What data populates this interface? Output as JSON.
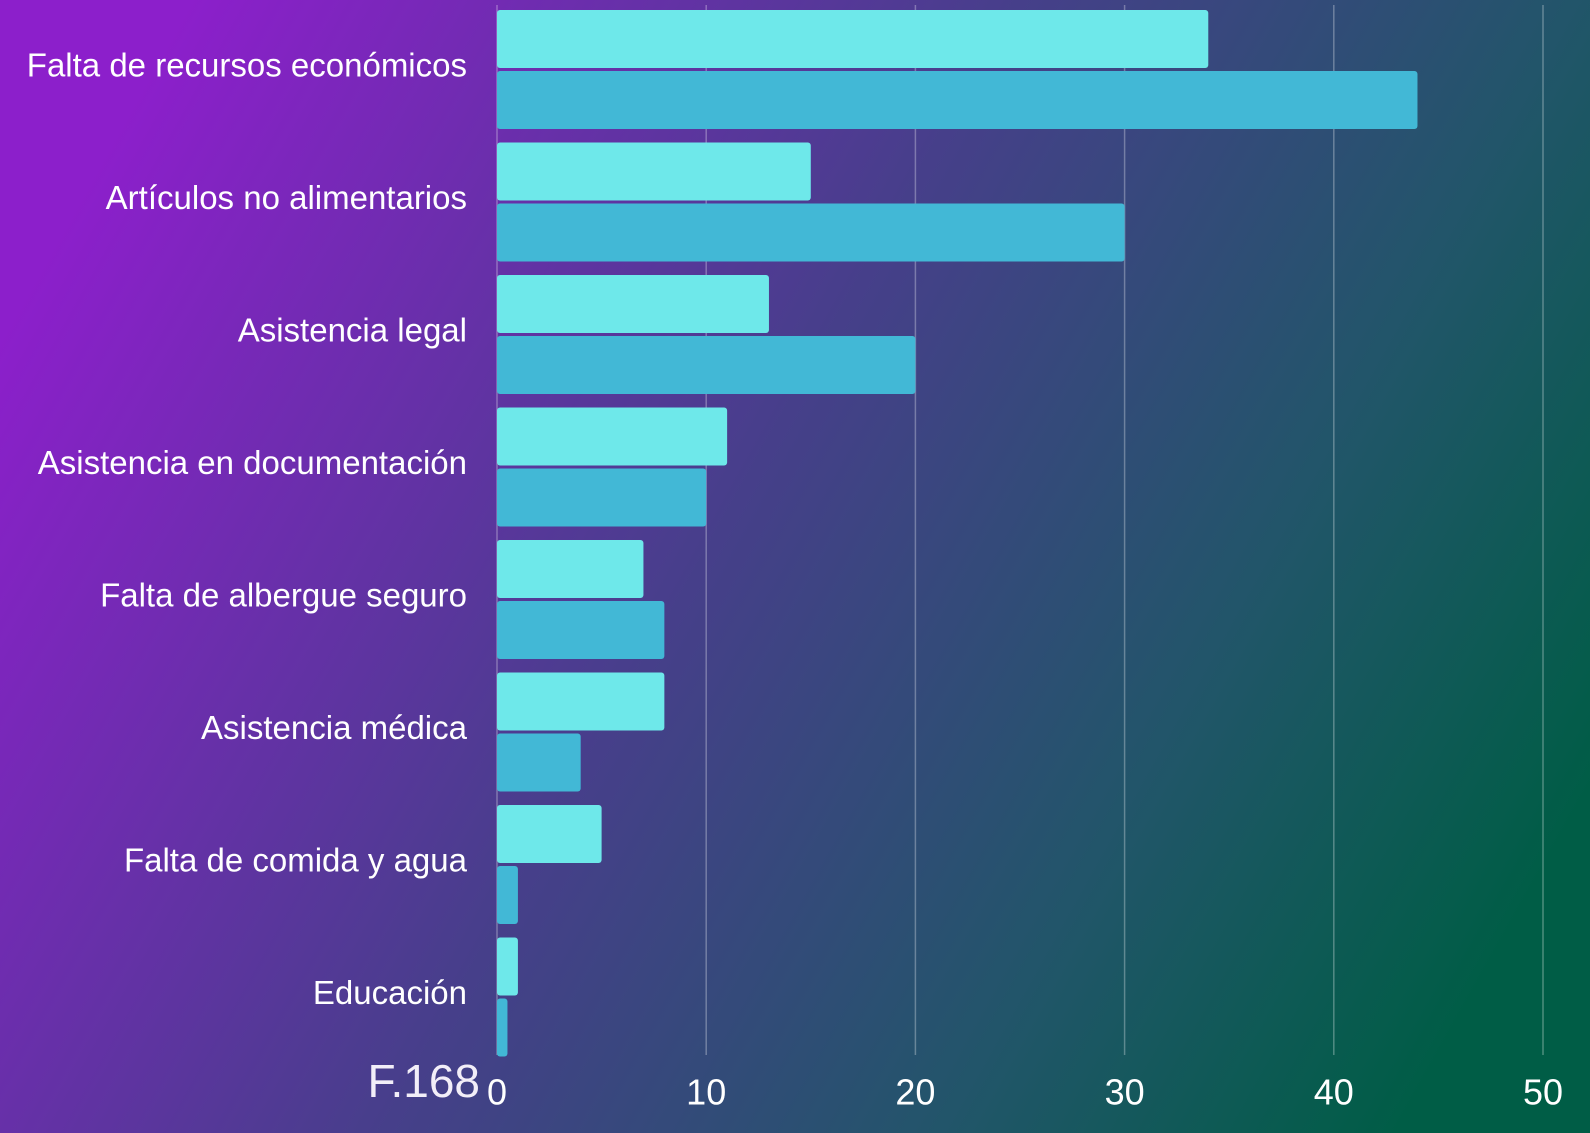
{
  "chart_data": {
    "type": "hbar",
    "categories": [
      "Falta de recursos económicos",
      "Artículos no alimentarios",
      "Asistencia legal",
      "Asistencia en documentación",
      "Falta de albergue seguro",
      "Asistencia médica",
      "Falta de comida y agua",
      "Educación"
    ],
    "series": [
      {
        "color": "#6ee8ea",
        "values": [
          34,
          15,
          13,
          11,
          7,
          8,
          5,
          1
        ]
      },
      {
        "color": "#42b8d6",
        "values": [
          44,
          30,
          20,
          10,
          8,
          4,
          1,
          0.5
        ]
      }
    ],
    "xlim": [
      0,
      50
    ],
    "xticks": [
      0,
      10,
      20,
      30,
      40,
      50
    ],
    "grid": true,
    "annotation": "F.168"
  }
}
